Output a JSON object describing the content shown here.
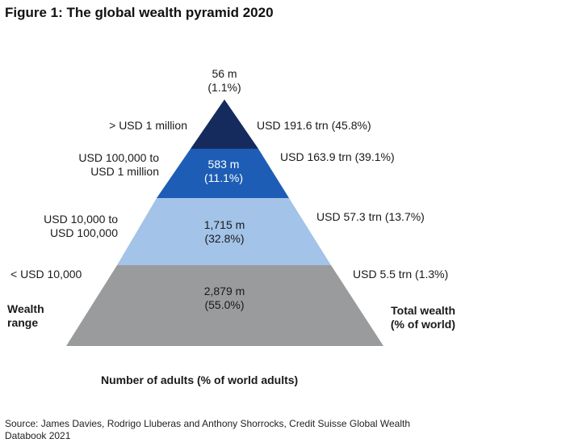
{
  "title": "Figure 1: The global wealth pyramid 2020",
  "chart_data": {
    "type": "pyramid",
    "tiers": [
      {
        "wealth_range": "> USD 1 million",
        "adults": "56 m",
        "adults_pct": "(1.1%)",
        "total_wealth": "USD 191.6 trn (45.8%)",
        "color": "#152b5e"
      },
      {
        "wealth_range": "USD 100,000 to USD 1 million",
        "adults": "583 m",
        "adults_pct": "(11.1%)",
        "total_wealth": "USD 163.9 trn (39.1%)",
        "color": "#1d5db5"
      },
      {
        "wealth_range": "USD 10,000 to USD 100,000",
        "adults": "1,715 m",
        "adults_pct": "(32.8%)",
        "total_wealth": "USD 57.3 trn (13.7%)",
        "color": "#a3c3e8"
      },
      {
        "wealth_range": "< USD 10,000",
        "adults": "2,879 m",
        "adults_pct": "(55.0%)",
        "total_wealth": "USD 5.5 trn (1.3%)",
        "color": "#9a9b9d"
      }
    ],
    "adult_counts_millions": [
      56,
      583,
      1715,
      2879
    ],
    "adult_shares_pct": [
      1.1,
      11.1,
      32.8,
      55.0
    ],
    "wealth_trn_usd": [
      191.6,
      163.9,
      57.3,
      5.5
    ],
    "wealth_shares_pct": [
      45.8,
      39.1,
      13.7,
      1.3
    ]
  },
  "labels": {
    "top_count_line1": "56 m",
    "top_count_line2": "(1.1%)",
    "tier1_range": "> USD 1 million",
    "tier1_wealth": "USD 191.6 trn (45.8%)",
    "tier2_range_line1": "USD 100,000 to",
    "tier2_range_line2": "USD 1 million",
    "tier2_count_line1": "583 m",
    "tier2_count_line2": "(11.1%)",
    "tier2_wealth": "USD 163.9 trn (39.1%)",
    "tier3_range_line1": "USD 10,000 to",
    "tier3_range_line2": "USD 100,000",
    "tier3_count_line1": "1,715 m",
    "tier3_count_line2": "(32.8%)",
    "tier3_wealth": "USD 57.3 trn (13.7%)",
    "tier4_range": "< USD 10,000",
    "tier4_count_line1": "2,879 m",
    "tier4_count_line2": "(55.0%)",
    "tier4_wealth": "USD 5.5 trn (1.3%)",
    "wealth_range_line1": "Wealth",
    "wealth_range_line2": "range",
    "total_wealth_line1": "Total wealth",
    "total_wealth_line2": "(% of world)",
    "x_axis": "Number of adults (% of world adults)"
  },
  "source_line1": "Source: James Davies, Rodrigo Lluberas and Anthony Shorrocks, Credit Suisse Global Wealth",
  "source_line2": "Databook 2021"
}
